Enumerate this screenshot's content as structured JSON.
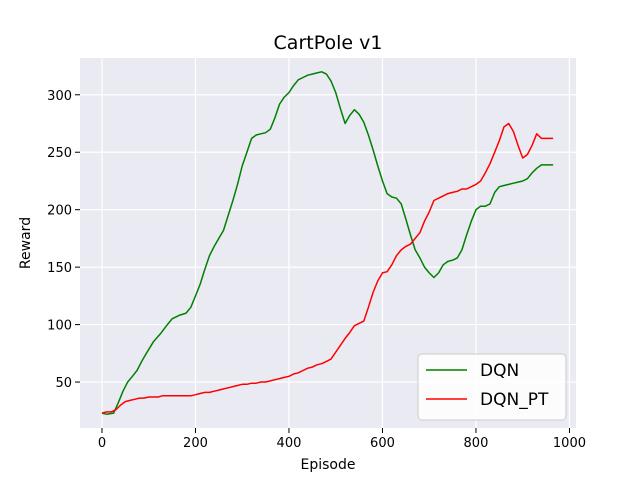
{
  "chart_data": {
    "type": "line",
    "title": "CartPole v1",
    "xlabel": "Episode",
    "ylabel": "Reward",
    "xlim": [
      -47,
      1014
    ],
    "ylim": [
      10,
      332
    ],
    "xticks": [
      0,
      200,
      400,
      600,
      800,
      1000
    ],
    "yticks": [
      50,
      100,
      150,
      200,
      250,
      300
    ],
    "grid": true,
    "legend_position": "lower-right",
    "series": [
      {
        "name": "DQN",
        "color": "#008000",
        "x": [
          0,
          10,
          25,
          35,
          45,
          55,
          65,
          75,
          85,
          95,
          110,
          125,
          140,
          150,
          165,
          180,
          190,
          200,
          210,
          220,
          230,
          240,
          250,
          260,
          270,
          280,
          290,
          300,
          310,
          320,
          330,
          340,
          350,
          360,
          370,
          380,
          390,
          400,
          410,
          420,
          430,
          440,
          450,
          460,
          470,
          480,
          490,
          500,
          510,
          520,
          530,
          540,
          550,
          560,
          570,
          580,
          590,
          600,
          610,
          620,
          630,
          640,
          650,
          660,
          670,
          680,
          690,
          700,
          710,
          720,
          730,
          740,
          750,
          760,
          770,
          780,
          790,
          800,
          810,
          820,
          830,
          840,
          850,
          860,
          870,
          880,
          890,
          900,
          910,
          920,
          930,
          940,
          950,
          960,
          965
        ],
        "values": [
          23,
          22,
          23,
          32,
          42,
          50,
          55,
          60,
          68,
          75,
          85,
          92,
          100,
          105,
          108,
          110,
          115,
          125,
          135,
          148,
          160,
          168,
          175,
          182,
          195,
          208,
          222,
          238,
          250,
          262,
          265,
          266,
          267,
          270,
          280,
          292,
          298,
          302,
          308,
          313,
          315,
          317,
          318,
          319,
          320,
          318,
          312,
          302,
          288,
          275,
          282,
          287,
          283,
          276,
          265,
          252,
          238,
          225,
          214,
          211,
          210,
          205,
          192,
          178,
          165,
          158,
          150,
          145,
          141,
          145,
          152,
          155,
          156,
          158,
          165,
          178,
          190,
          200,
          203,
          203,
          205,
          215,
          220,
          221,
          222,
          223,
          224,
          225,
          227,
          232,
          236,
          239,
          239,
          239,
          239
        ],
        "_note_x": ""
      },
      {
        "name": "DQN_PT",
        "color": "#ff0000",
        "x": [
          0,
          10,
          20,
          30,
          40,
          50,
          60,
          70,
          80,
          90,
          100,
          110,
          120,
          130,
          140,
          150,
          160,
          170,
          180,
          190,
          200,
          210,
          220,
          230,
          240,
          250,
          260,
          270,
          280,
          290,
          300,
          310,
          320,
          330,
          340,
          350,
          360,
          370,
          380,
          390,
          400,
          410,
          420,
          430,
          440,
          450,
          460,
          470,
          480,
          490,
          500,
          510,
          520,
          530,
          540,
          550,
          560,
          570,
          580,
          590,
          600,
          610,
          620,
          630,
          640,
          650,
          660,
          670,
          680,
          690,
          700,
          710,
          720,
          730,
          740,
          750,
          760,
          770,
          780,
          790,
          800,
          810,
          820,
          830,
          840,
          850,
          860,
          870,
          880,
          890,
          900,
          910,
          920,
          930,
          940,
          950,
          960,
          965
        ],
        "values": [
          23,
          24,
          24,
          26,
          30,
          33,
          34,
          35,
          36,
          36,
          37,
          37,
          37,
          38,
          38,
          38,
          38,
          38,
          38,
          38,
          39,
          40,
          41,
          41,
          42,
          43,
          44,
          45,
          46,
          47,
          48,
          48,
          49,
          49,
          50,
          50,
          51,
          52,
          53,
          54,
          55,
          57,
          58,
          60,
          62,
          63,
          65,
          66,
          68,
          70,
          76,
          82,
          88,
          93,
          99,
          101,
          103,
          115,
          128,
          138,
          145,
          146,
          152,
          160,
          165,
          168,
          170,
          175,
          180,
          190,
          198,
          208,
          210,
          212,
          214,
          215,
          216,
          218,
          218,
          220,
          222,
          225,
          232,
          240,
          250,
          260,
          272,
          275,
          268,
          256,
          245,
          248,
          256,
          266,
          262,
          262,
          262,
          262
        ]
      }
    ]
  }
}
